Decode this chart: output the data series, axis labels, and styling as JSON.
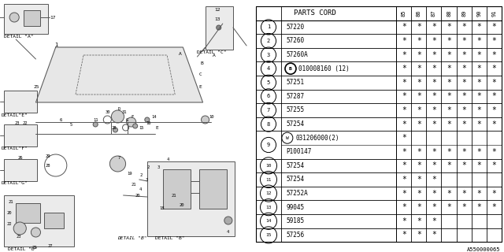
{
  "bg_color": "#ffffff",
  "col_header": "PARTS CORD",
  "year_cols": [
    "85",
    "86",
    "87",
    "88",
    "89",
    "90",
    "91"
  ],
  "footer": "A550000065",
  "row_data": [
    {
      "num": "1",
      "part": "57220",
      "w_pre": false,
      "b_pre": false,
      "stars": [
        1,
        1,
        1,
        1,
        1,
        1,
        1
      ],
      "split_top": false,
      "split_bot": false
    },
    {
      "num": "2",
      "part": "57260",
      "w_pre": false,
      "b_pre": false,
      "stars": [
        1,
        1,
        1,
        1,
        1,
        1,
        1
      ],
      "split_top": false,
      "split_bot": false
    },
    {
      "num": "3",
      "part": "57260A",
      "w_pre": false,
      "b_pre": false,
      "stars": [
        1,
        1,
        1,
        1,
        1,
        1,
        1
      ],
      "split_top": false,
      "split_bot": false
    },
    {
      "num": "4",
      "part": "010008160 (12)",
      "w_pre": false,
      "b_pre": true,
      "stars": [
        1,
        1,
        1,
        1,
        1,
        1,
        1
      ],
      "split_top": false,
      "split_bot": false
    },
    {
      "num": "5",
      "part": "57251",
      "w_pre": false,
      "b_pre": false,
      "stars": [
        1,
        1,
        1,
        1,
        1,
        1,
        1
      ],
      "split_top": false,
      "split_bot": false
    },
    {
      "num": "6",
      "part": "57287",
      "w_pre": false,
      "b_pre": false,
      "stars": [
        1,
        1,
        1,
        1,
        1,
        1,
        1
      ],
      "split_top": false,
      "split_bot": false
    },
    {
      "num": "7",
      "part": "57255",
      "w_pre": false,
      "b_pre": false,
      "stars": [
        1,
        1,
        1,
        1,
        1,
        1,
        1
      ],
      "split_top": false,
      "split_bot": false
    },
    {
      "num": "8",
      "part": "57254",
      "w_pre": false,
      "b_pre": false,
      "stars": [
        1,
        1,
        1,
        1,
        1,
        1,
        1
      ],
      "split_top": false,
      "split_bot": false
    },
    {
      "num": "9",
      "part": "031206000(2)",
      "w_pre": true,
      "b_pre": false,
      "stars": [
        1,
        0,
        0,
        0,
        0,
        0,
        0
      ],
      "split_top": true,
      "split_bot": false
    },
    {
      "num": "9",
      "part": "P100147",
      "w_pre": false,
      "b_pre": false,
      "stars": [
        1,
        1,
        1,
        1,
        1,
        1,
        1
      ],
      "split_top": false,
      "split_bot": true
    },
    {
      "num": "10",
      "part": "57254",
      "w_pre": false,
      "b_pre": false,
      "stars": [
        1,
        1,
        1,
        1,
        1,
        1,
        1
      ],
      "split_top": false,
      "split_bot": false
    },
    {
      "num": "11",
      "part": "57254",
      "w_pre": false,
      "b_pre": false,
      "stars": [
        1,
        1,
        1,
        0,
        0,
        0,
        0
      ],
      "split_top": false,
      "split_bot": false
    },
    {
      "num": "12",
      "part": "57252A",
      "w_pre": false,
      "b_pre": false,
      "stars": [
        1,
        1,
        1,
        1,
        1,
        1,
        1
      ],
      "split_top": false,
      "split_bot": false
    },
    {
      "num": "13",
      "part": "99045",
      "w_pre": false,
      "b_pre": false,
      "stars": [
        1,
        1,
        1,
        1,
        1,
        1,
        1
      ],
      "split_top": false,
      "split_bot": false
    },
    {
      "num": "14",
      "part": "59185",
      "w_pre": false,
      "b_pre": false,
      "stars": [
        1,
        1,
        1,
        0,
        0,
        0,
        0
      ],
      "split_top": false,
      "split_bot": false
    },
    {
      "num": "15",
      "part": "57256",
      "w_pre": false,
      "b_pre": false,
      "stars": [
        1,
        1,
        1,
        0,
        0,
        0,
        0
      ],
      "split_top": false,
      "split_bot": false
    }
  ]
}
